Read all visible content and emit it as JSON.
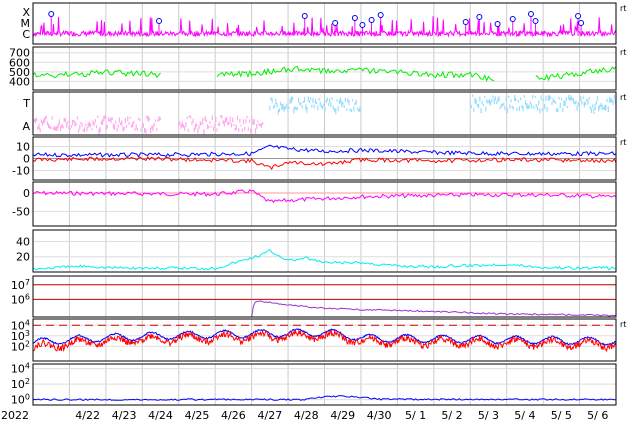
{
  "chart_data": {
    "type": "line",
    "x_axis": {
      "start": "2022-04-21",
      "end": "2022-05-07",
      "year_label": "2022",
      "tick_labels": [
        "4/22",
        "4/23",
        "4/24",
        "4/25",
        "4/26",
        "4/27",
        "4/28",
        "4/29",
        "4/30",
        "5/ 1",
        "5/ 2",
        "5/ 3",
        "5/ 4",
        "5/ 5",
        "5/ 6"
      ]
    },
    "panels": [
      {
        "id": "xray-flare",
        "y_tick_labels": [
          "X",
          "M",
          "C"
        ],
        "series": [
          {
            "color": "#ff00ff",
            "style": "spiky"
          }
        ],
        "markers": {
          "color": "#0000ff",
          "x": [
            "2022-04-21T12:00",
            "2022-04-24T11:00",
            "2022-04-28T11:00",
            "2022-04-29T07:00",
            "2022-04-29T20:00",
            "2022-04-30T01:00",
            "2022-04-30T07:00",
            "2022-04-30T13:00",
            "2022-05-02T21:00",
            "2022-05-03T06:00",
            "2022-05-03T18:00",
            "2022-05-04T04:00",
            "2022-05-04T16:00",
            "2022-05-04T19:00",
            "2022-05-05T23:00",
            "2022-05-06T01:00"
          ]
        },
        "right_label": "rt"
      },
      {
        "id": "solar-wind-speed",
        "y_tick_labels": [
          "700",
          "600",
          "500",
          "400"
        ],
        "ylim": [
          310,
          760
        ],
        "series": [
          {
            "color": "#00ee00",
            "x": [
              "2022-04-21",
              "2022-04-22",
              "2022-04-23",
              "2022-04-24",
              "2022-04-24T12:00",
              "2022-04-25",
              "2022-04-26",
              "2022-04-26T20:00",
              "2022-04-27T12:00",
              "2022-04-28",
              "2022-04-29",
              "2022-04-30",
              "2022-05-01",
              "2022-05-02",
              "2022-05-03",
              "2022-05-03T16:00",
              "2022-05-04",
              "2022-05-04T18:00",
              "2022-05-05",
              "2022-05-06",
              "2022-05-07"
            ],
            "y": [
              460,
              470,
              490,
              480,
              470,
              null,
              470,
              480,
              500,
              530,
              510,
              520,
              500,
              470,
              470,
              420,
              null,
              450,
              440,
              480,
              540
            ]
          }
        ],
        "right_label": "rt"
      },
      {
        "id": "imf-direction",
        "y_tick_labels": [
          "T",
          "A"
        ],
        "series": [
          {
            "color": "#ffaaee",
            "x": [
              "2022-04-21",
              "2022-04-24T12:00",
              "2022-04-25",
              "2022-04-27T08:00"
            ],
            "y": [
              0.3,
              0.3,
              0.3,
              0.3
            ]
          },
          {
            "color": "#99ddff",
            "x": [
              "2022-04-27T12:00",
              "2022-04-30",
              "2022-05-03",
              "2022-05-07"
            ],
            "y": [
              0.75,
              0.75,
              0.78,
              0.8
            ]
          }
        ],
        "right_label": "rt"
      },
      {
        "id": "imf-components",
        "y_tick_labels": [
          "10",
          "0",
          "-10"
        ],
        "ylim": [
          -18,
          18
        ],
        "series": [
          {
            "color": "#0000ff",
            "x": [
              "2022-04-21",
              "2022-04-24",
              "2022-04-27",
              "2022-04-27T12:00",
              "2022-04-28",
              "2022-04-29",
              "2022-04-30",
              "2022-05-02",
              "2022-05-04",
              "2022-05-07"
            ],
            "y": [
              3,
              3,
              4,
              10,
              8,
              6,
              7,
              5,
              4,
              4
            ]
          },
          {
            "color": "#ff0000",
            "x": [
              "2022-04-21",
              "2022-04-24",
              "2022-04-27",
              "2022-04-27T12:00",
              "2022-04-28",
              "2022-04-29",
              "2022-04-30",
              "2022-05-02",
              "2022-05-04",
              "2022-05-07"
            ],
            "y": [
              -1,
              0,
              -2,
              -8,
              -3,
              -5,
              -1,
              -2,
              -1,
              -2
            ]
          }
        ],
        "right_label": "rt"
      },
      {
        "id": "dst-index",
        "y_tick_labels": [
          "0",
          "-50"
        ],
        "ylim": [
          -90,
          30
        ],
        "series": [
          {
            "color": "#ff00ff",
            "x": [
              "2022-04-21",
              "2022-04-24",
              "2022-04-26",
              "2022-04-27",
              "2022-04-27T12:00",
              "2022-04-28",
              "2022-04-29",
              "2022-04-30",
              "2022-05-01",
              "2022-05-03",
              "2022-05-05",
              "2022-05-07"
            ],
            "y": [
              0,
              -2,
              -3,
              5,
              -25,
              -20,
              -15,
              -10,
              -8,
              -5,
              -5,
              -10
            ]
          }
        ]
      },
      {
        "id": "kp-index",
        "y_tick_labels": [
          "40",
          "20"
        ],
        "ylim": [
          0,
          55
        ],
        "series": [
          {
            "color": "#00eeee",
            "x": [
              "2022-04-21",
              "2022-04-22T12:00",
              "2022-04-23",
              "2022-04-24",
              "2022-04-26",
              "2022-04-27T06:00",
              "2022-04-27T12:00",
              "2022-04-28",
              "2022-04-28T12:00",
              "2022-04-29",
              "2022-04-30",
              "2022-05-01",
              "2022-05-02",
              "2022-05-04",
              "2022-05-05",
              "2022-05-07"
            ],
            "y": [
              4,
              8,
              6,
              5,
              5,
              22,
              28,
              15,
              18,
              12,
              12,
              8,
              7,
              10,
              6,
              5
            ]
          }
        ]
      },
      {
        "id": "electron-flux",
        "y_tick_labels": [
          "10^7",
          "10^6"
        ],
        "log_range": [
          4.8,
          7.6
        ],
        "series": [
          {
            "color": "#9933cc",
            "x": [
              "2022-04-21",
              "2022-04-27",
              "2022-04-27T03:00",
              "2022-04-28",
              "2022-04-29",
              "2022-04-30",
              "2022-05-02",
              "2022-05-04",
              "2022-05-07"
            ],
            "y": [
              50000,
              50000,
              800000,
              400000,
              250000,
              200000,
              150000,
              100000,
              80000
            ]
          }
        ],
        "reference_lines": [
          {
            "color": "#cc0000",
            "y": 1000000
          },
          {
            "color": "#cc0000",
            "y": 10000000
          }
        ]
      },
      {
        "id": "proton-flux",
        "y_tick_labels": [
          "10^4",
          "10^3",
          "10^2"
        ],
        "log_range": [
          0.6,
          4.6
        ],
        "series": [
          {
            "color": "#0000ff",
            "style": "diurnal",
            "base": 300,
            "x": [
              "2022-04-21",
              "2022-04-29",
              "2022-04-30",
              "2022-05-07"
            ],
            "y": [
              200,
              2000,
              600,
              300
            ]
          },
          {
            "color": "#ff0000",
            "style": "diurnal-noisy",
            "base": 100,
            "x": [
              "2022-04-21",
              "2022-04-29",
              "2022-04-30",
              "2022-05-07"
            ],
            "y": [
              60,
              1000,
              300,
              150
            ]
          }
        ],
        "reference_lines": [
          {
            "color": "#cc0000",
            "y": 10000,
            "dashed": true
          }
        ],
        "right_label": "rt"
      },
      {
        "id": "neutron-count",
        "y_tick_labels": [
          "10^4",
          "10^2",
          "10^0"
        ],
        "log_range": [
          -0.7,
          4.6
        ],
        "series": [
          {
            "color": "#0000ff",
            "x": [
              "2022-04-21",
              "2022-04-28T12:00",
              "2022-04-29",
              "2022-04-29T12:00",
              "2022-04-30",
              "2022-04-30T12:00",
              "2022-05-07"
            ],
            "y": [
              1,
              1,
              2.2,
              2.8,
              1.9,
              1.1,
              1
            ]
          }
        ]
      }
    ]
  }
}
